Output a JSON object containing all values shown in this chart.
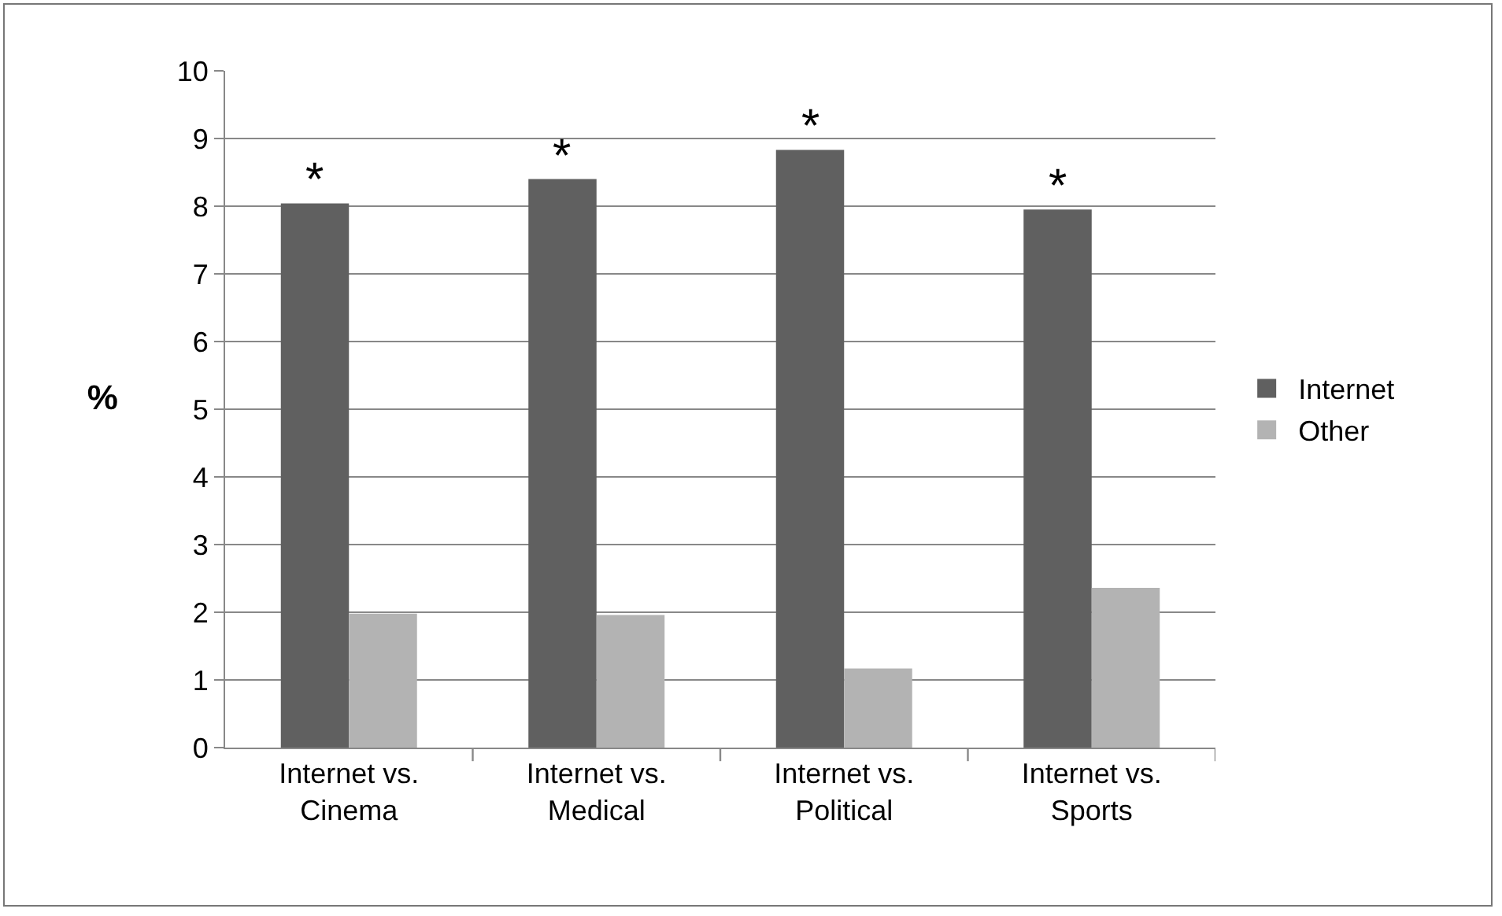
{
  "chart_data": {
    "type": "bar",
    "ylabel": "%",
    "categories": [
      "Internet vs.\nCinema",
      "Internet vs.\nMedical",
      "Internet vs.\nPolitical",
      "Internet vs.\nSports"
    ],
    "series": [
      {
        "name": "Internet",
        "color": "#606060",
        "values": [
          8.04,
          8.4,
          8.83,
          7.95
        ]
      },
      {
        "name": "Other",
        "color": "#b3b3b3",
        "values": [
          1.98,
          1.96,
          1.17,
          2.36
        ]
      }
    ],
    "ylim": [
      0,
      10
    ],
    "yticks": [
      0,
      1,
      2,
      3,
      4,
      5,
      6,
      7,
      8,
      9,
      10
    ],
    "grid": "y",
    "legend": "right",
    "annotations": [
      {
        "text": "*",
        "x": "Internet vs.\nCinema",
        "y": 8.04
      },
      {
        "text": "*",
        "x": "Internet vs.\nMedical",
        "y": 8.4
      },
      {
        "text": "*",
        "x": "Internet vs.\nPolitical",
        "y": 8.83
      },
      {
        "text": "*",
        "x": "Internet vs.\nSports",
        "y": 7.95
      }
    ]
  }
}
